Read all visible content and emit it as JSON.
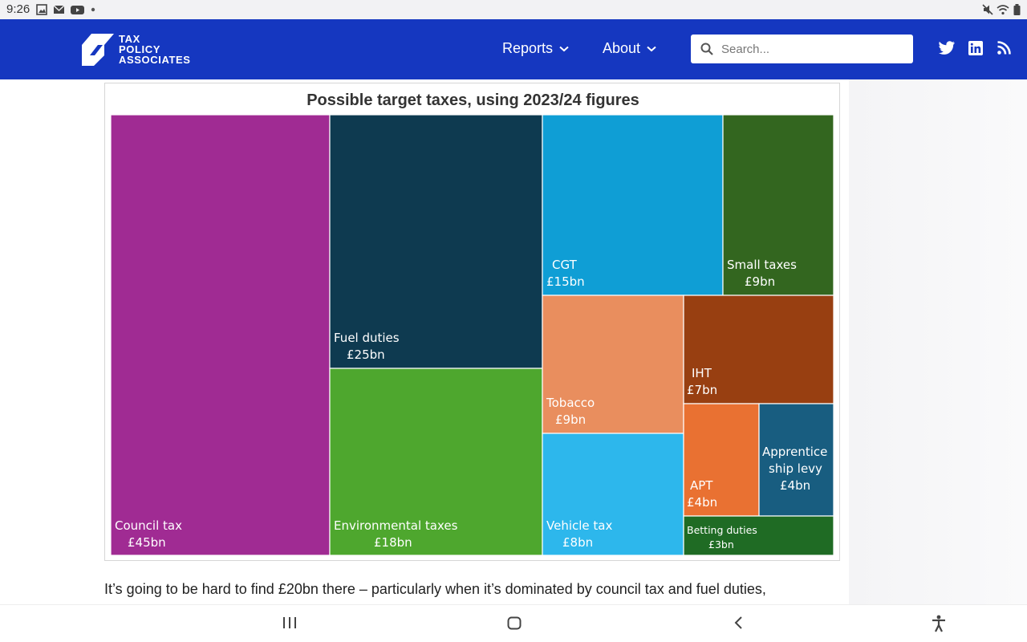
{
  "status_bar": {
    "time": "9:26"
  },
  "header": {
    "logo_lines": [
      "TAX",
      "POLICY",
      "ASSOCIATES"
    ],
    "nav": [
      {
        "label": "Reports"
      },
      {
        "label": "About"
      }
    ],
    "search_placeholder": "Search..."
  },
  "chart_data": {
    "type": "treemap",
    "title": "Possible target taxes, using 2023/24 figures",
    "unit": "£bn",
    "items": [
      {
        "name": "Council tax",
        "value_label": "£45bn",
        "value": 45,
        "color": "#a02b93"
      },
      {
        "name": "Fuel duties",
        "value_label": "£25bn",
        "value": 25,
        "color": "#0e3a50"
      },
      {
        "name": "Environmental taxes",
        "value_label": "£18bn",
        "value": 18,
        "color": "#4ea72e"
      },
      {
        "name": "CGT",
        "value_label": "£15bn",
        "value": 15,
        "color": "#0f9ed5"
      },
      {
        "name": "Small taxes",
        "value_label": "£9bn",
        "value": 9,
        "color": "#33661f"
      },
      {
        "name": "Tobacco",
        "value_label": "£9bn",
        "value": 9,
        "color": "#e98e5e"
      },
      {
        "name": "IHT",
        "value_label": "£7bn",
        "value": 7,
        "color": "#983f11"
      },
      {
        "name": "Vehicle tax",
        "value_label": "£8bn",
        "value": 8,
        "color": "#2db7ec"
      },
      {
        "name": "APT",
        "value_label": "£4bn",
        "value": 4,
        "color": "#e97132"
      },
      {
        "name": "Apprentice ship levy",
        "value_label": "£4bn",
        "value": 4,
        "color": "#185d80"
      },
      {
        "name": "Betting duties",
        "value_label": "£3bn",
        "value": 3,
        "color": "#1f6b24"
      }
    ]
  },
  "article": {
    "paragraph": "It’s going to be hard to find £20bn there – particularly when it’s dominated by council tax and fuel duties,"
  }
}
